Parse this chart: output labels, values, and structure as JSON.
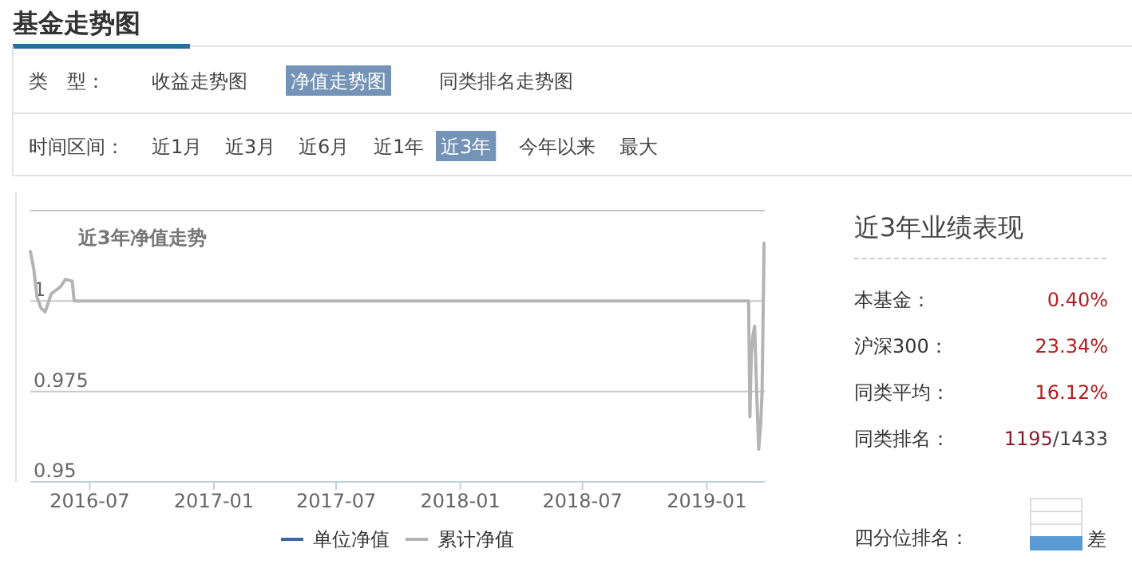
{
  "chart_data": [
    {
      "type": "line",
      "title": "近3年净值走势",
      "annotations": [
        "基金走势图",
        "类　型：",
        "收益走势图",
        "净值走势图",
        "同类排名走势图",
        "时间区间：",
        "近1月",
        "近3月",
        "近6月",
        "近1年",
        "近3年",
        "今年以来",
        "最大"
      ],
      "x": [
        "2016-04-04",
        "2016-04-09",
        "2016-04-14",
        "2016-04-20",
        "2016-04-26",
        "2016-05-05",
        "2016-05-12",
        "2016-05-19",
        "2016-05-26",
        "2016-06-05",
        "2016-06-08",
        "2019-03-04",
        "2019-03-06",
        "2019-03-08",
        "2019-03-10",
        "2019-03-13",
        "2019-03-16",
        "2019-03-19",
        "2019-03-22",
        "2019-03-24",
        "2019-03-27"
      ],
      "series": [
        {
          "name": "单位净值",
          "color": "#3d6a96",
          "values": [
            null,
            null,
            null,
            null,
            null,
            null,
            null,
            null,
            null,
            null,
            null,
            null,
            null,
            null,
            null,
            null,
            null,
            null,
            null,
            null,
            null
          ]
        },
        {
          "name": "累计净值",
          "color": "#b4b4b4",
          "values": [
            1.0137,
            1.009,
            1.001,
            0.998,
            0.997,
            1.002,
            1.003,
            1.004,
            1.006,
            1.0055,
            1.0,
            1.0,
            0.968,
            0.985,
            0.99,
            0.993,
            0.975,
            0.959,
            0.966,
            0.975,
            1.016
          ]
        }
      ],
      "xlim": [
        "2016-04-04",
        "2019-03-28"
      ],
      "xticks": [
        "2016-07",
        "2017-01",
        "2017-07",
        "2018-01",
        "2018-07",
        "2019-01"
      ],
      "ylim": [
        0.95,
        1.025
      ],
      "yticks": [
        0.95,
        0.975,
        1,
        {
          "value": 1.025,
          "label": null
        }
      ],
      "grid": "y",
      "legend": "bottom",
      "line_style": "solid"
    },
    {
      "type": "other",
      "title": "近3年业绩表现",
      "annotations": [
        "本基金：",
        "0.40%",
        "沪深300：",
        "23.34%",
        "同类平均：",
        "16.12%",
        "同类排名：",
        "1195/1433",
        "四分位排名：",
        "差"
      ]
    }
  ]
}
